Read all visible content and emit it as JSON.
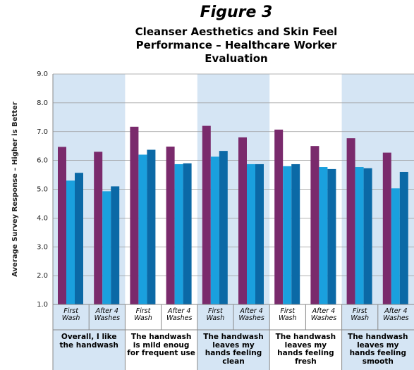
{
  "chart_data": {
    "type": "bar",
    "title": "Figure 3",
    "subtitle": "Cleanser Aesthetics and Skin Feel Performance – Healthcare Worker Evaluation",
    "y_label": "Average Survey Response – Higher is Better",
    "categories": [
      "First Wash",
      "After 4 Washes",
      "First Wash",
      "After 4 Washes",
      "First Wash",
      "After 4 Washes",
      "First Wash",
      "After 4 Washes",
      "First Wash",
      "After 4 Washes"
    ],
    "groups": [
      "Overall, I like the handwash",
      "The handwash is mild enoug for frequent use",
      "The handwash leaves my hands feeling clean",
      "The handwash leaves my hands feeling fresh",
      "The handwash leaves my hands feeling smooth"
    ],
    "series": [
      {
        "color": "#7a2a6c",
        "values": [
          6.47,
          6.3,
          7.17,
          6.48,
          7.2,
          6.8,
          7.07,
          6.5,
          6.77,
          6.27
        ]
      },
      {
        "color": "#1aa0de",
        "values": [
          5.3,
          4.93,
          6.2,
          5.87,
          6.13,
          5.87,
          5.8,
          5.77,
          5.77,
          5.03
        ]
      },
      {
        "color": "#0b69a6",
        "values": [
          5.57,
          5.1,
          6.37,
          5.9,
          6.33,
          5.87,
          5.87,
          5.7,
          5.73,
          5.6
        ]
      }
    ],
    "ylim": [
      1,
      9
    ],
    "yticks": [
      {
        "value": 1,
        "label": "1.0"
      },
      {
        "value": 2,
        "label": "2.0"
      },
      {
        "value": 3,
        "label": "3.0"
      },
      {
        "value": 4,
        "label": "4.0"
      },
      {
        "value": 5,
        "label": "5.0"
      },
      {
        "value": 6,
        "label": "6.0"
      },
      {
        "value": 7,
        "label": "7.0"
      },
      {
        "value": 8,
        "label": "8.0"
      },
      {
        "value": 9,
        "label": "9.0"
      }
    ],
    "grid": true,
    "band_color": "#d5e5f4"
  }
}
